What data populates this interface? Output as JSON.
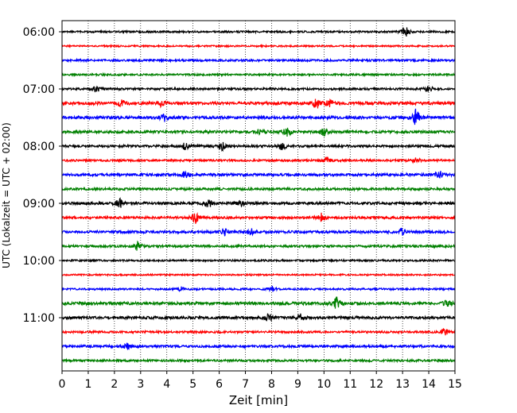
{
  "chart_data": {
    "type": "line",
    "title": "",
    "xlabel": "Zeit  [min]",
    "ylabel": "UTC (Lokalzeit = UTC + 02:00)",
    "xlim": [
      0,
      15
    ],
    "x_ticks": [
      "0",
      "1",
      "2",
      "3",
      "4",
      "5",
      "6",
      "7",
      "8",
      "9",
      "10",
      "11",
      "12",
      "13",
      "14",
      "15"
    ],
    "y_ticks": [
      "06:00",
      "07:00",
      "08:00",
      "09:00",
      "10:00",
      "11:00"
    ],
    "x_grid": "dotted",
    "legend": "none",
    "trace_interval_minutes": 15,
    "trace_colors": [
      "#000000",
      "#ff0000",
      "#0000ff",
      "#008000"
    ],
    "traces": [
      {
        "start": "06:00",
        "color": "#000000",
        "amplitude": 0.35,
        "events": [
          [
            13.1,
            1.6
          ]
        ]
      },
      {
        "start": "06:15",
        "color": "#ff0000",
        "amplitude": 0.3,
        "events": []
      },
      {
        "start": "06:30",
        "color": "#0000ff",
        "amplitude": 0.4,
        "events": []
      },
      {
        "start": "06:45",
        "color": "#008000",
        "amplitude": 0.35,
        "events": []
      },
      {
        "start": "07:00",
        "color": "#000000",
        "amplitude": 0.4,
        "events": [
          [
            1.3,
            0.8
          ],
          [
            14.0,
            0.9
          ]
        ]
      },
      {
        "start": "07:15",
        "color": "#ff0000",
        "amplitude": 0.55,
        "events": [
          [
            2.3,
            0.9
          ],
          [
            3.8,
            0.8
          ],
          [
            9.7,
            1.4
          ],
          [
            10.2,
            1.1
          ]
        ]
      },
      {
        "start": "07:30",
        "color": "#0000ff",
        "amplitude": 0.55,
        "events": [
          [
            3.9,
            1.0
          ],
          [
            13.5,
            2.2
          ]
        ]
      },
      {
        "start": "07:45",
        "color": "#008000",
        "amplitude": 0.5,
        "events": [
          [
            7.6,
            1.0
          ],
          [
            8.6,
            1.2
          ],
          [
            10.0,
            0.9
          ]
        ]
      },
      {
        "start": "08:00",
        "color": "#000000",
        "amplitude": 0.45,
        "events": [
          [
            4.7,
            0.8
          ],
          [
            6.1,
            1.0
          ],
          [
            8.4,
            0.9
          ]
        ]
      },
      {
        "start": "08:15",
        "color": "#ff0000",
        "amplitude": 0.4,
        "events": [
          [
            10.1,
            0.8
          ],
          [
            13.5,
            0.7
          ]
        ]
      },
      {
        "start": "08:30",
        "color": "#0000ff",
        "amplitude": 0.5,
        "events": [
          [
            4.7,
            0.8
          ],
          [
            14.4,
            1.0
          ]
        ]
      },
      {
        "start": "08:45",
        "color": "#008000",
        "amplitude": 0.45,
        "events": []
      },
      {
        "start": "09:00",
        "color": "#000000",
        "amplitude": 0.5,
        "events": [
          [
            2.2,
            1.1
          ],
          [
            5.6,
            1.0
          ],
          [
            6.8,
            0.8
          ]
        ]
      },
      {
        "start": "09:15",
        "color": "#ff0000",
        "amplitude": 0.45,
        "events": [
          [
            5.1,
            1.5
          ],
          [
            9.9,
            1.2
          ]
        ]
      },
      {
        "start": "09:30",
        "color": "#0000ff",
        "amplitude": 0.5,
        "events": [
          [
            6.2,
            0.9
          ],
          [
            7.2,
            0.8
          ],
          [
            13.0,
            0.9
          ]
        ]
      },
      {
        "start": "09:45",
        "color": "#008000",
        "amplitude": 0.45,
        "events": [
          [
            2.9,
            1.1
          ]
        ]
      },
      {
        "start": "10:00",
        "color": "#000000",
        "amplitude": 0.35,
        "events": []
      },
      {
        "start": "10:15",
        "color": "#ff0000",
        "amplitude": 0.3,
        "events": []
      },
      {
        "start": "10:30",
        "color": "#0000ff",
        "amplitude": 0.35,
        "events": [
          [
            4.5,
            0.7
          ],
          [
            8.0,
            0.7
          ]
        ]
      },
      {
        "start": "10:45",
        "color": "#008000",
        "amplitude": 0.55,
        "events": [
          [
            10.5,
            1.7
          ],
          [
            14.7,
            0.7
          ]
        ]
      },
      {
        "start": "11:00",
        "color": "#000000",
        "amplitude": 0.5,
        "events": [
          [
            7.9,
            1.1
          ],
          [
            9.1,
            0.9
          ]
        ]
      },
      {
        "start": "11:15",
        "color": "#ff0000",
        "amplitude": 0.4,
        "events": [
          [
            14.6,
            1.0
          ]
        ]
      },
      {
        "start": "11:30",
        "color": "#0000ff",
        "amplitude": 0.45,
        "events": [
          [
            2.5,
            1.0
          ]
        ]
      },
      {
        "start": "11:45",
        "color": "#008000",
        "amplitude": 0.4,
        "events": []
      }
    ]
  }
}
